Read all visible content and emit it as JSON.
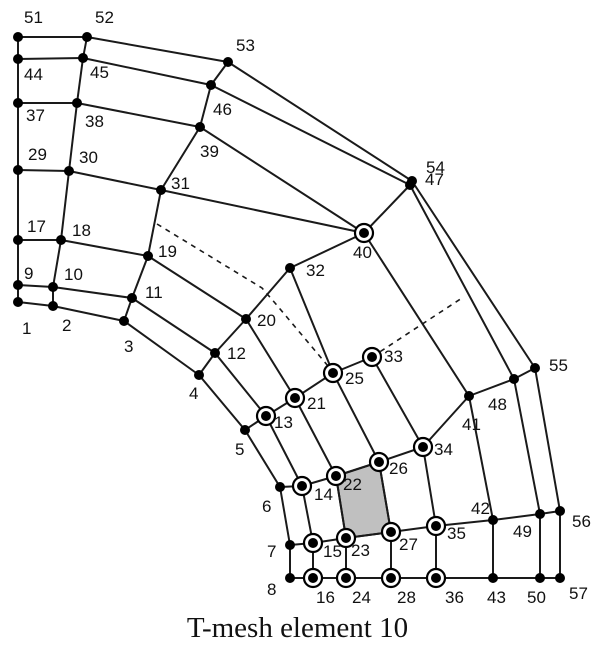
{
  "caption": "T-mesh element 10",
  "colors": {
    "stroke": "#1a1a1a",
    "node": "#000000",
    "highlight_fill": "#c0c0c0",
    "background": "#ffffff"
  },
  "nodes": [
    {
      "id": "1",
      "label": "1",
      "ring": false
    },
    {
      "id": "2",
      "label": "2",
      "ring": false
    },
    {
      "id": "3",
      "label": "3",
      "ring": false
    },
    {
      "id": "4",
      "label": "4",
      "ring": false
    },
    {
      "id": "5",
      "label": "5",
      "ring": false
    },
    {
      "id": "6",
      "label": "6",
      "ring": false
    },
    {
      "id": "7",
      "label": "7",
      "ring": false
    },
    {
      "id": "8",
      "label": "8",
      "ring": false
    },
    {
      "id": "9",
      "label": "9",
      "ring": false
    },
    {
      "id": "10",
      "label": "10",
      "ring": false
    },
    {
      "id": "11",
      "label": "11",
      "ring": false
    },
    {
      "id": "12",
      "label": "12",
      "ring": false
    },
    {
      "id": "13",
      "label": "13",
      "ring": true
    },
    {
      "id": "14",
      "label": "14",
      "ring": true
    },
    {
      "id": "15",
      "label": "15",
      "ring": true
    },
    {
      "id": "16",
      "label": "16",
      "ring": true
    },
    {
      "id": "17",
      "label": "17",
      "ring": false
    },
    {
      "id": "18",
      "label": "18",
      "ring": false
    },
    {
      "id": "19",
      "label": "19",
      "ring": false
    },
    {
      "id": "20",
      "label": "20",
      "ring": false
    },
    {
      "id": "21",
      "label": "21",
      "ring": true
    },
    {
      "id": "22",
      "label": "22",
      "ring": true
    },
    {
      "id": "23",
      "label": "23",
      "ring": true
    },
    {
      "id": "24",
      "label": "24",
      "ring": true
    },
    {
      "id": "25",
      "label": "25",
      "ring": true
    },
    {
      "id": "26",
      "label": "26",
      "ring": true
    },
    {
      "id": "27",
      "label": "27",
      "ring": true
    },
    {
      "id": "28",
      "label": "28",
      "ring": true
    },
    {
      "id": "29",
      "label": "29",
      "ring": false
    },
    {
      "id": "30",
      "label": "30",
      "ring": false
    },
    {
      "id": "31",
      "label": "31",
      "ring": false
    },
    {
      "id": "32",
      "label": "32",
      "ring": false
    },
    {
      "id": "33",
      "label": "33",
      "ring": true
    },
    {
      "id": "34",
      "label": "34",
      "ring": true
    },
    {
      "id": "35",
      "label": "35",
      "ring": true
    },
    {
      "id": "36",
      "label": "36",
      "ring": true
    },
    {
      "id": "37",
      "label": "37",
      "ring": false
    },
    {
      "id": "38",
      "label": "38",
      "ring": false
    },
    {
      "id": "39",
      "label": "39",
      "ring": false
    },
    {
      "id": "40",
      "label": "40",
      "ring": true
    },
    {
      "id": "41",
      "label": "41",
      "ring": false
    },
    {
      "id": "42",
      "label": "42",
      "ring": false
    },
    {
      "id": "43",
      "label": "43",
      "ring": false
    },
    {
      "id": "44",
      "label": "44",
      "ring": false
    },
    {
      "id": "45",
      "label": "45",
      "ring": false
    },
    {
      "id": "46",
      "label": "46",
      "ring": false
    },
    {
      "id": "47",
      "label": "47",
      "ring": false
    },
    {
      "id": "48",
      "label": "48",
      "ring": false
    },
    {
      "id": "49",
      "label": "49",
      "ring": false
    },
    {
      "id": "50",
      "label": "50",
      "ring": false
    },
    {
      "id": "51",
      "label": "51",
      "ring": false
    },
    {
      "id": "52",
      "label": "52",
      "ring": false
    },
    {
      "id": "53",
      "label": "53",
      "ring": false
    },
    {
      "id": "54",
      "label": "54",
      "ring": false
    },
    {
      "id": "55",
      "label": "55",
      "ring": false
    },
    {
      "id": "56",
      "label": "56",
      "ring": false
    },
    {
      "id": "57",
      "label": "57",
      "ring": false
    }
  ],
  "edges": [
    [
      "1",
      "2"
    ],
    [
      "2",
      "3"
    ],
    [
      "3",
      "4"
    ],
    [
      "4",
      "5"
    ],
    [
      "5",
      "6"
    ],
    [
      "6",
      "7"
    ],
    [
      "7",
      "8"
    ],
    [
      "9",
      "10"
    ],
    [
      "10",
      "11"
    ],
    [
      "11",
      "12"
    ],
    [
      "12",
      "13"
    ],
    [
      "13",
      "14"
    ],
    [
      "14",
      "15"
    ],
    [
      "15",
      "16"
    ],
    [
      "17",
      "18"
    ],
    [
      "18",
      "19"
    ],
    [
      "19",
      "20"
    ],
    [
      "20",
      "21"
    ],
    [
      "21",
      "22"
    ],
    [
      "22",
      "23"
    ],
    [
      "23",
      "24"
    ],
    [
      "32",
      "25"
    ],
    [
      "25",
      "26"
    ],
    [
      "26",
      "27"
    ],
    [
      "27",
      "28"
    ],
    [
      "29",
      "30"
    ],
    [
      "30",
      "31"
    ],
    [
      "31",
      "40"
    ],
    [
      "33",
      "34"
    ],
    [
      "34",
      "35"
    ],
    [
      "35",
      "36"
    ],
    [
      "37",
      "38"
    ],
    [
      "38",
      "39"
    ],
    [
      "39",
      "40"
    ],
    [
      "40",
      "41"
    ],
    [
      "41",
      "42"
    ],
    [
      "42",
      "43"
    ],
    [
      "44",
      "45"
    ],
    [
      "45",
      "46"
    ],
    [
      "46",
      "47"
    ],
    [
      "47",
      "48"
    ],
    [
      "48",
      "49"
    ],
    [
      "49",
      "50"
    ],
    [
      "51",
      "52"
    ],
    [
      "52",
      "53"
    ],
    [
      "53",
      "54"
    ],
    [
      "54",
      "55"
    ],
    [
      "55",
      "56"
    ],
    [
      "56",
      "57"
    ],
    [
      "1",
      "9"
    ],
    [
      "9",
      "17"
    ],
    [
      "17",
      "29"
    ],
    [
      "29",
      "37"
    ],
    [
      "37",
      "44"
    ],
    [
      "44",
      "51"
    ],
    [
      "2",
      "10"
    ],
    [
      "10",
      "18"
    ],
    [
      "18",
      "30"
    ],
    [
      "30",
      "38"
    ],
    [
      "38",
      "45"
    ],
    [
      "45",
      "52"
    ],
    [
      "3",
      "11"
    ],
    [
      "11",
      "19"
    ],
    [
      "19",
      "31"
    ],
    [
      "31",
      "39"
    ],
    [
      "39",
      "46"
    ],
    [
      "46",
      "53"
    ],
    [
      "4",
      "12"
    ],
    [
      "12",
      "20"
    ],
    [
      "20",
      "32"
    ],
    [
      "32",
      "40"
    ],
    [
      "40",
      "47"
    ],
    [
      "47",
      "54"
    ],
    [
      "5",
      "13"
    ],
    [
      "13",
      "21"
    ],
    [
      "21",
      "25"
    ],
    [
      "25",
      "33"
    ],
    [
      "6",
      "14"
    ],
    [
      "14",
      "22"
    ],
    [
      "22",
      "26"
    ],
    [
      "26",
      "34"
    ],
    [
      "34",
      "41"
    ],
    [
      "41",
      "48"
    ],
    [
      "48",
      "55"
    ],
    [
      "7",
      "15"
    ],
    [
      "15",
      "23"
    ],
    [
      "23",
      "27"
    ],
    [
      "27",
      "35"
    ],
    [
      "35",
      "42"
    ],
    [
      "42",
      "49"
    ],
    [
      "49",
      "56"
    ],
    [
      "8",
      "16"
    ],
    [
      "16",
      "24"
    ],
    [
      "24",
      "28"
    ],
    [
      "28",
      "36"
    ],
    [
      "36",
      "43"
    ],
    [
      "43",
      "50"
    ],
    [
      "50",
      "57"
    ]
  ],
  "dashed_edges": [
    [
      "19",
      "20"
    ],
    [
      "33",
      "48"
    ]
  ],
  "highlighted_element": [
    "22",
    "26",
    "27",
    "23"
  ]
}
